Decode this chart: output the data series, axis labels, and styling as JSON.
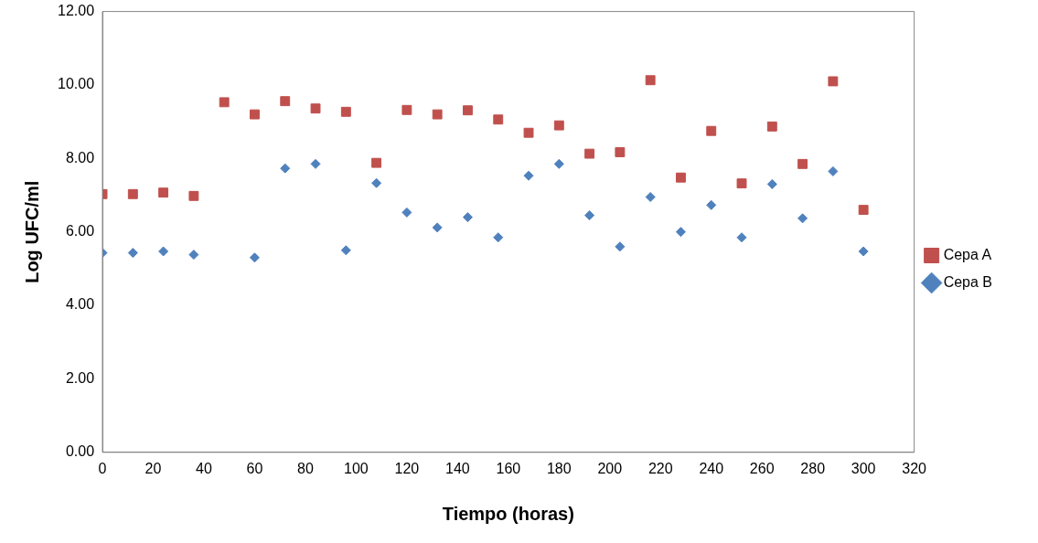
{
  "chart_data": {
    "type": "scatter",
    "xlabel": "Tiempo (horas)",
    "ylabel": "Log UFC/ml",
    "xlim": [
      0,
      320
    ],
    "xticks": [
      0,
      20,
      40,
      60,
      80,
      100,
      120,
      140,
      160,
      180,
      200,
      220,
      240,
      260,
      280,
      300,
      320
    ],
    "ylim": [
      0,
      12
    ],
    "yticks": [
      {
        "value": 0,
        "label": "0.00"
      },
      {
        "value": 2,
        "label": "2.00"
      },
      {
        "value": 4,
        "label": "4.00"
      },
      {
        "value": 6,
        "label": "6.00"
      },
      {
        "value": 8,
        "label": "8.00"
      },
      {
        "value": 10,
        "label": "10.00"
      },
      {
        "value": 12,
        "label": "12.00"
      }
    ],
    "grid": false,
    "legend": "right",
    "series": [
      {
        "name": "Cepa A",
        "color": "#c0504d",
        "marker": "square",
        "x": [
          0,
          12,
          24,
          36,
          48,
          60,
          72,
          84,
          96,
          108,
          120,
          132,
          144,
          156,
          168,
          180,
          192,
          204,
          216,
          228,
          240,
          252,
          264,
          276,
          288,
          300
        ],
        "values": [
          7.03,
          7.03,
          7.07,
          6.98,
          9.53,
          9.2,
          9.56,
          9.36,
          9.27,
          7.88,
          9.32,
          9.2,
          9.31,
          9.06,
          8.7,
          8.9,
          8.13,
          8.17,
          10.13,
          7.48,
          8.75,
          7.32,
          8.87,
          7.85,
          10.1,
          6.6
        ]
      },
      {
        "name": "Cepa B",
        "color": "#4f81bd",
        "marker": "diamond",
        "x": [
          0,
          12,
          24,
          36,
          60,
          72,
          84,
          96,
          108,
          120,
          132,
          144,
          156,
          168,
          180,
          192,
          204,
          216,
          228,
          240,
          252,
          264,
          276,
          288,
          300
        ],
        "values": [
          5.43,
          5.43,
          5.47,
          5.38,
          5.3,
          7.73,
          7.85,
          5.5,
          7.33,
          6.53,
          6.12,
          6.4,
          5.85,
          7.53,
          7.85,
          6.45,
          5.6,
          6.95,
          6.0,
          6.73,
          5.85,
          7.3,
          6.37,
          7.65,
          5.47
        ]
      }
    ]
  }
}
